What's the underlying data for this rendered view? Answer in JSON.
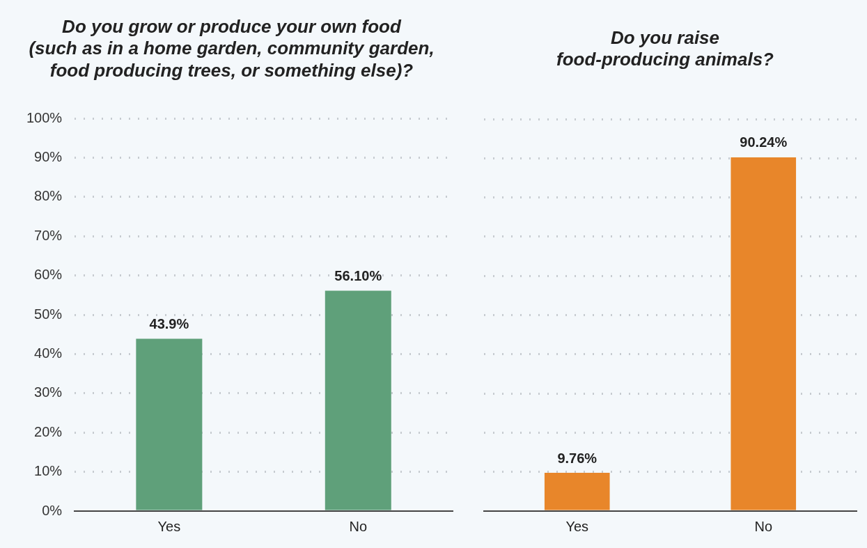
{
  "chart_data": [
    {
      "type": "bar",
      "title": "Do you grow or produce your own food\n(such as in a home garden, community garden,\nfood producing trees, or something else)?",
      "categories": [
        "Yes",
        "No"
      ],
      "values": [
        43.9,
        56.1
      ],
      "value_labels": [
        "43.9%",
        "56.10%"
      ],
      "color": "#5fa07a",
      "ylim": [
        0,
        100
      ],
      "yticks": [
        {
          "value": 0,
          "label": "0%"
        },
        {
          "value": 10,
          "label": "10%"
        },
        {
          "value": 20,
          "label": "20%"
        },
        {
          "value": 30,
          "label": "30%"
        },
        {
          "value": 40,
          "label": "40%"
        },
        {
          "value": 50,
          "label": "50%"
        },
        {
          "value": 60,
          "label": "60%"
        },
        {
          "value": 70,
          "label": "70%"
        },
        {
          "value": 80,
          "label": "80%"
        },
        {
          "value": 90,
          "label": "90%"
        },
        {
          "value": 100,
          "label": "100%"
        }
      ],
      "grid": "y",
      "legend": false
    },
    {
      "type": "bar",
      "title": "Do you raise\nfood-producing animals?",
      "categories": [
        "Yes",
        "No"
      ],
      "values": [
        9.76,
        90.24
      ],
      "value_labels": [
        "9.76%",
        "90.24%"
      ],
      "color": "#e8862a",
      "ylim": [
        0,
        100
      ],
      "yticks": [
        {
          "value": 0,
          "label": null
        },
        {
          "value": 10,
          "label": null
        },
        {
          "value": 20,
          "label": null
        },
        {
          "value": 30,
          "label": null
        },
        {
          "value": 40,
          "label": null
        },
        {
          "value": 50,
          "label": null
        },
        {
          "value": 60,
          "label": null
        },
        {
          "value": 70,
          "label": null
        },
        {
          "value": 80,
          "label": null
        },
        {
          "value": 90,
          "label": null
        },
        {
          "value": 100,
          "label": null
        }
      ],
      "grid": "y",
      "legend": false,
      "tick_labels": "x"
    }
  ]
}
